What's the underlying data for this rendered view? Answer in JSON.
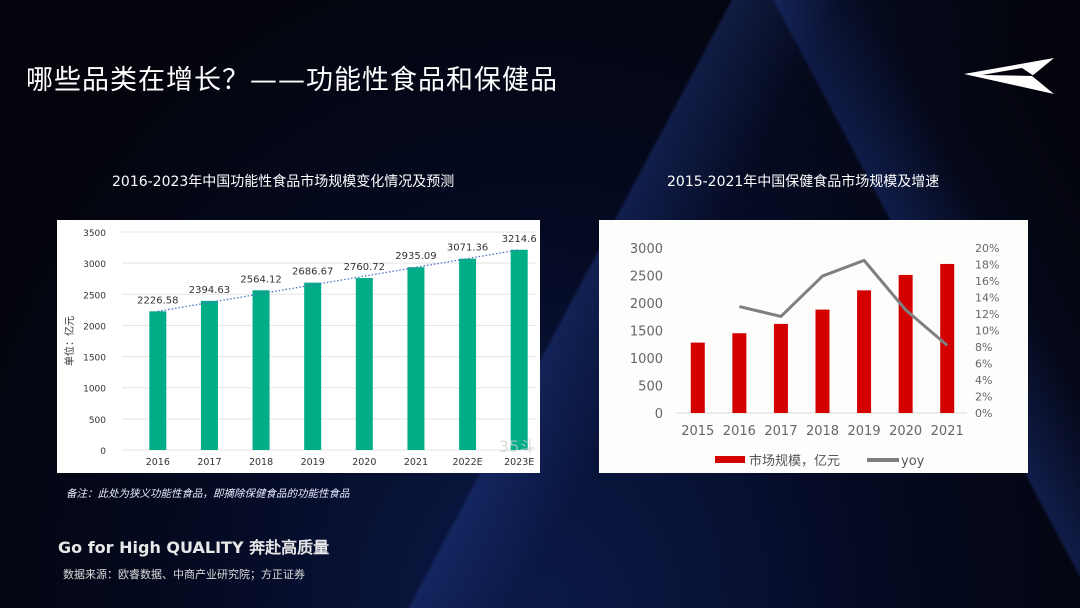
{
  "header": {
    "title": "哪些品类在增长？——功能性食品和保健品"
  },
  "chart_data": [
    {
      "type": "bar",
      "title": "2016-2023年中国功能性食品市场规模变化情况及预测",
      "categories": [
        "2016",
        "2017",
        "2018",
        "2019",
        "2020",
        "2021",
        "2022E",
        "2023E"
      ],
      "values": [
        2226.58,
        2394.63,
        2564.12,
        2686.67,
        2760.72,
        2935.09,
        3071.36,
        3214.6
      ],
      "labels": [
        "2226.58",
        "2394.63",
        "2564.12",
        "2686.67",
        "2760.72",
        "2935.09",
        "3071.36",
        "3214.6"
      ],
      "ylabel": "单位：亿元",
      "ylim": [
        0,
        3500
      ],
      "yticks": [
        "0",
        "500",
        "1000",
        "1500",
        "2000",
        "2500",
        "3000",
        "3500"
      ],
      "trendline": "linear dotted",
      "grid": true,
      "color": "#00ad86",
      "watermark": "35斗"
    },
    {
      "type": "bar+line",
      "title": "2015-2021年中国保健食品市场规模及增速",
      "categories": [
        "2015",
        "2016",
        "2017",
        "2018",
        "2019",
        "2020",
        "2021"
      ],
      "series": [
        {
          "name": "市场规模，亿元",
          "type": "bar",
          "axis": "left",
          "color": "#d40000",
          "values": [
            1280,
            1450,
            1620,
            1880,
            2230,
            2510,
            2710
          ]
        },
        {
          "name": "yoy",
          "type": "line",
          "axis": "right",
          "color": "#7f7f7f",
          "values": [
            null,
            12.9,
            11.7,
            16.6,
            18.5,
            12.5,
            8.2
          ]
        }
      ],
      "ylim": [
        0,
        3000
      ],
      "yticks": [
        "0",
        "500",
        "1000",
        "1500",
        "2000",
        "2500",
        "3000"
      ],
      "y2lim": [
        0,
        20
      ],
      "y2ticks": [
        "0%",
        "2%",
        "4%",
        "6%",
        "8%",
        "10%",
        "12%",
        "14%",
        "16%",
        "18%",
        "20%"
      ],
      "legend": "bottom"
    }
  ],
  "note": "备注：此处为狭义功能性食品，即摘除保健食品的功能性食品",
  "slogan": "Go for High QUALITY 奔赴高质量",
  "source": "数据来源：欧睿数据、中商产业研究院；方正证券"
}
